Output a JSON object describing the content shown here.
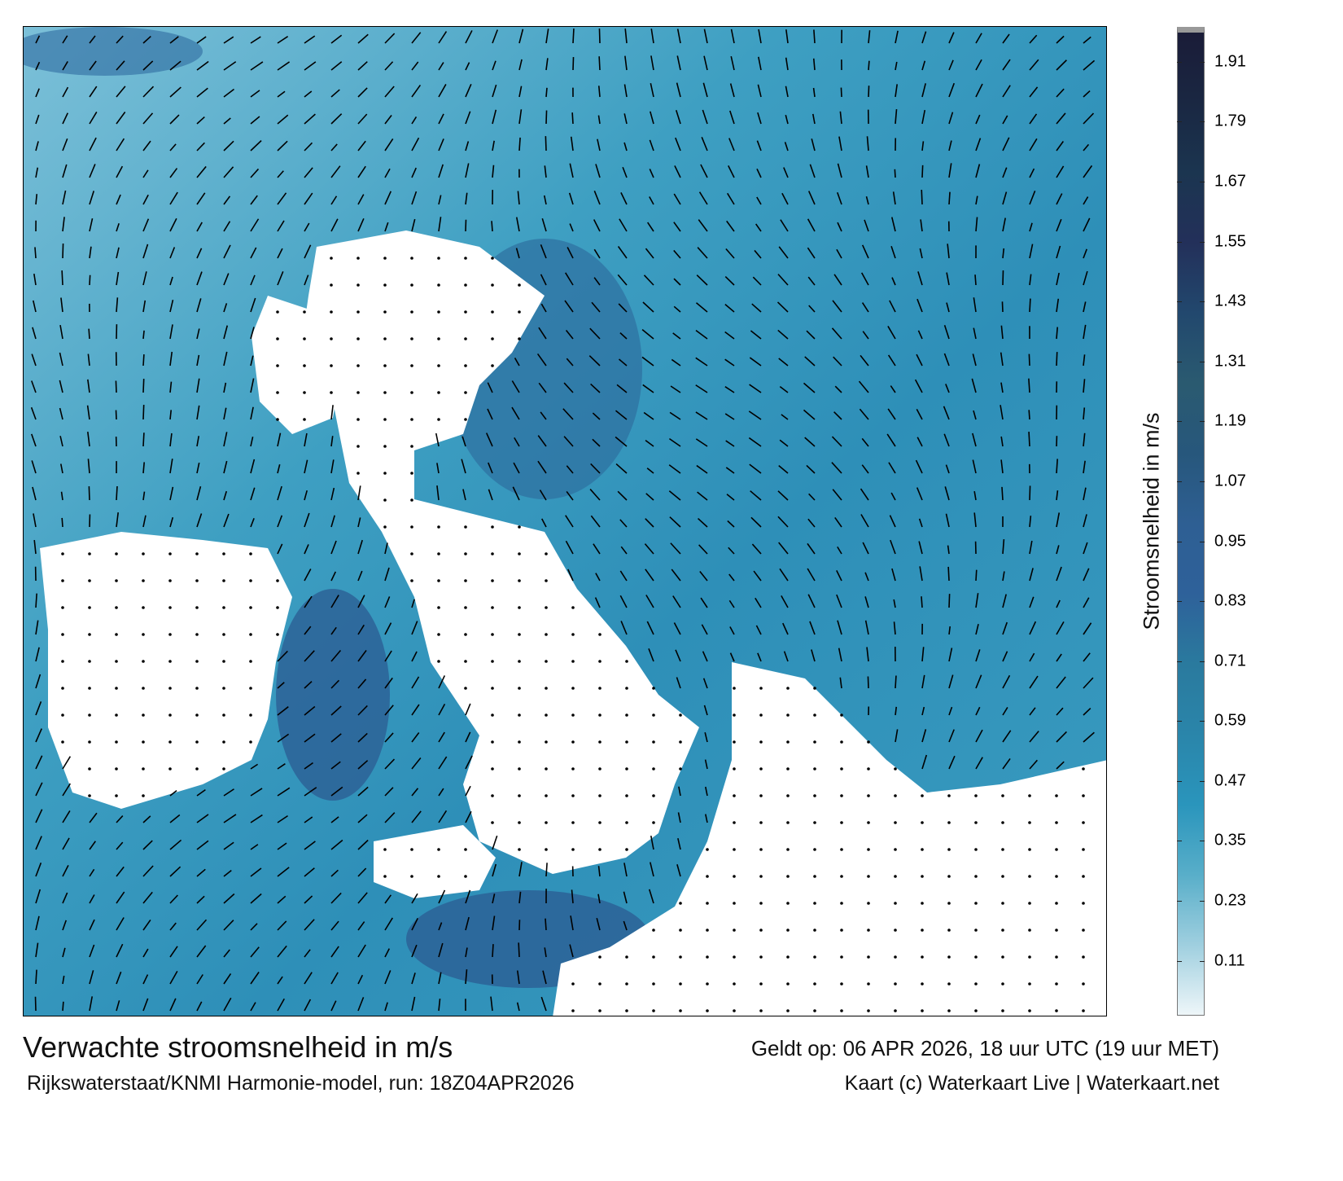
{
  "map": {
    "title": "Verwachte stroomsnelheid in m/s",
    "valid_time": "Geldt op: 06 APR 2026, 18 uur UTC (19 uur MET)",
    "source": "Rijkswaterstaat/KNMI Harmonie-model, run: 18Z04APR2026",
    "credit": "Kaart (c) Waterkaart Live | Waterkaart.net",
    "sea_color": "#3a9cc0",
    "land_color": "#ffffff"
  },
  "colorbar": {
    "label": "Stroomsnelheid in m/s",
    "range": [
      0,
      1.98
    ],
    "ticks": [
      "0.11",
      "0.23",
      "0.35",
      "0.47",
      "0.59",
      "0.71",
      "0.83",
      "0.95",
      "1.07",
      "1.19",
      "1.31",
      "1.43",
      "1.55",
      "1.67",
      "1.79",
      "1.91"
    ],
    "colors": [
      "#eef6f9",
      "#9fcfdf",
      "#58aec9",
      "#2a95bc",
      "#2a85aa",
      "#2a7a9e",
      "#2e619a",
      "#2e5f93",
      "#27577c",
      "#2a5a70",
      "#22486e",
      "#23305a",
      "#1b3550",
      "#1a2742",
      "#1a1c38"
    ]
  }
}
